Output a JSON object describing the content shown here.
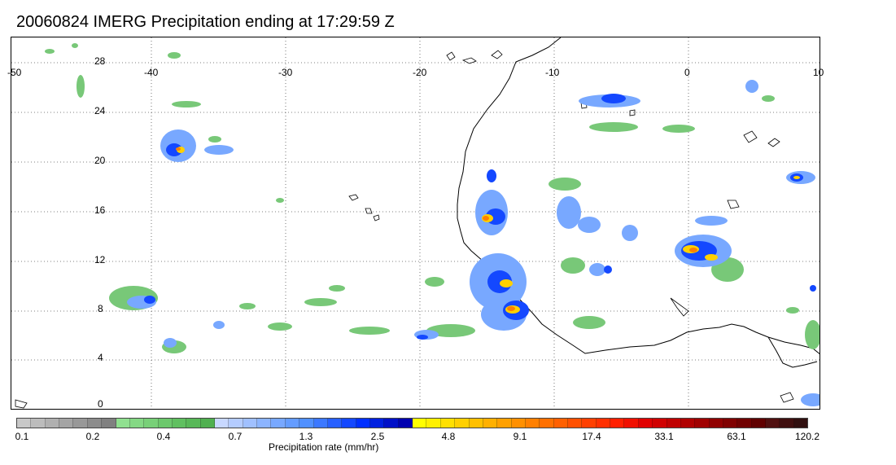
{
  "title": "20060824 IMERG Precipitation ending at 17:29:59 Z",
  "map": {
    "lon_labels": [
      "-50",
      "-40",
      "-30",
      "-20",
      "-10",
      "0",
      "10"
    ],
    "lat_labels": [
      "28",
      "24",
      "20",
      "16",
      "12",
      "8",
      "4",
      "0"
    ],
    "lon_range": [
      -50,
      10
    ],
    "lat_range": [
      -1,
      30
    ],
    "grid": "dotted",
    "coastline_color": "#000000"
  },
  "colorbar": {
    "label": "Precipitation rate (mm/hr)",
    "ticks": [
      "0.1",
      "0.2",
      "0.4",
      "0.7",
      "1.3",
      "2.5",
      "4.8",
      "9.1",
      "17.4",
      "33.1",
      "63.1",
      "120.2"
    ],
    "colors": [
      "#c8c8c8",
      "#bcbcbc",
      "#b0b0b0",
      "#a4a4a4",
      "#989898",
      "#8c8c8c",
      "#808080",
      "#90e090",
      "#84d884",
      "#78d078",
      "#6cc86c",
      "#60c060",
      "#58b858",
      "#50b050",
      "#c8d8ff",
      "#b4ccff",
      "#a0c0ff",
      "#8cb4ff",
      "#78a8ff",
      "#649cff",
      "#5090ff",
      "#3c78ff",
      "#2860ff",
      "#1448ff",
      "#0030ff",
      "#0020e0",
      "#0010c8",
      "#0000b0",
      "#ffff00",
      "#fff000",
      "#ffe000",
      "#ffd000",
      "#ffc000",
      "#ffb000",
      "#ffa000",
      "#ff9000",
      "#ff8000",
      "#ff7000",
      "#ff6000",
      "#ff5000",
      "#ff4000",
      "#ff3000",
      "#ff2000",
      "#f01000",
      "#e00000",
      "#d00000",
      "#c00000",
      "#b00000",
      "#a00000",
      "#900000",
      "#800000",
      "#700000",
      "#600000",
      "#501010",
      "#401010",
      "#301010"
    ]
  },
  "precip_colors": {
    "light": "#78c878",
    "blue_light": "#78a8ff",
    "blue_mid": "#3c78ff",
    "blue_dark": "#0000c0",
    "yellow": "#ffd000",
    "orange": "#ff8000",
    "red": "#ff2000"
  }
}
